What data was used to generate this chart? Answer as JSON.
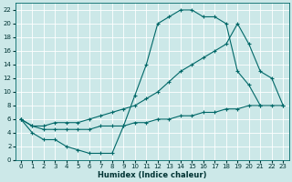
{
  "background_color": "#cce8e8",
  "grid_color": "#b0d0d0",
  "line_color": "#006868",
  "xlabel": "Humidex (Indice chaleur)",
  "xlim": [
    -0.5,
    23.5
  ],
  "ylim": [
    0,
    23
  ],
  "xticks": [
    0,
    1,
    2,
    3,
    4,
    5,
    6,
    7,
    8,
    9,
    10,
    11,
    12,
    13,
    14,
    15,
    16,
    17,
    18,
    19,
    20,
    21,
    22,
    23
  ],
  "yticks": [
    0,
    2,
    4,
    6,
    8,
    10,
    12,
    14,
    16,
    18,
    20,
    22
  ],
  "curve1_x": [
    0,
    1,
    2,
    3,
    4,
    5,
    6,
    7,
    8,
    9,
    10,
    11,
    12,
    13,
    14,
    15,
    16,
    17,
    18,
    19,
    20,
    21
  ],
  "curve1_y": [
    6,
    4,
    3,
    3,
    2,
    1.5,
    1,
    1,
    1,
    5,
    9.5,
    14,
    20,
    21,
    22,
    22,
    21,
    21,
    20,
    13,
    11,
    8
  ],
  "curve2_x": [
    0,
    1,
    2,
    3,
    4,
    5,
    6,
    7,
    8,
    9,
    10,
    11,
    12,
    13,
    14,
    15,
    16,
    17,
    18,
    19,
    20,
    21,
    22,
    23
  ],
  "curve2_y": [
    6,
    5,
    5,
    5.5,
    5.5,
    5.5,
    6,
    6.5,
    7,
    7.5,
    8,
    9,
    10,
    11.5,
    13,
    14,
    15,
    16,
    17,
    20,
    17,
    13,
    12,
    8
  ],
  "curve3_x": [
    0,
    1,
    2,
    3,
    4,
    5,
    6,
    7,
    8,
    9,
    10,
    11,
    12,
    13,
    14,
    15,
    16,
    17,
    18,
    19,
    20,
    21,
    22,
    23
  ],
  "curve3_y": [
    6,
    5,
    4.5,
    4.5,
    4.5,
    4.5,
    4.5,
    5,
    5,
    5,
    5.5,
    5.5,
    6,
    6,
    6.5,
    6.5,
    7,
    7,
    7.5,
    7.5,
    8,
    8,
    8,
    8
  ],
  "figsize": [
    3.2,
    2.0
  ],
  "dpi": 100
}
